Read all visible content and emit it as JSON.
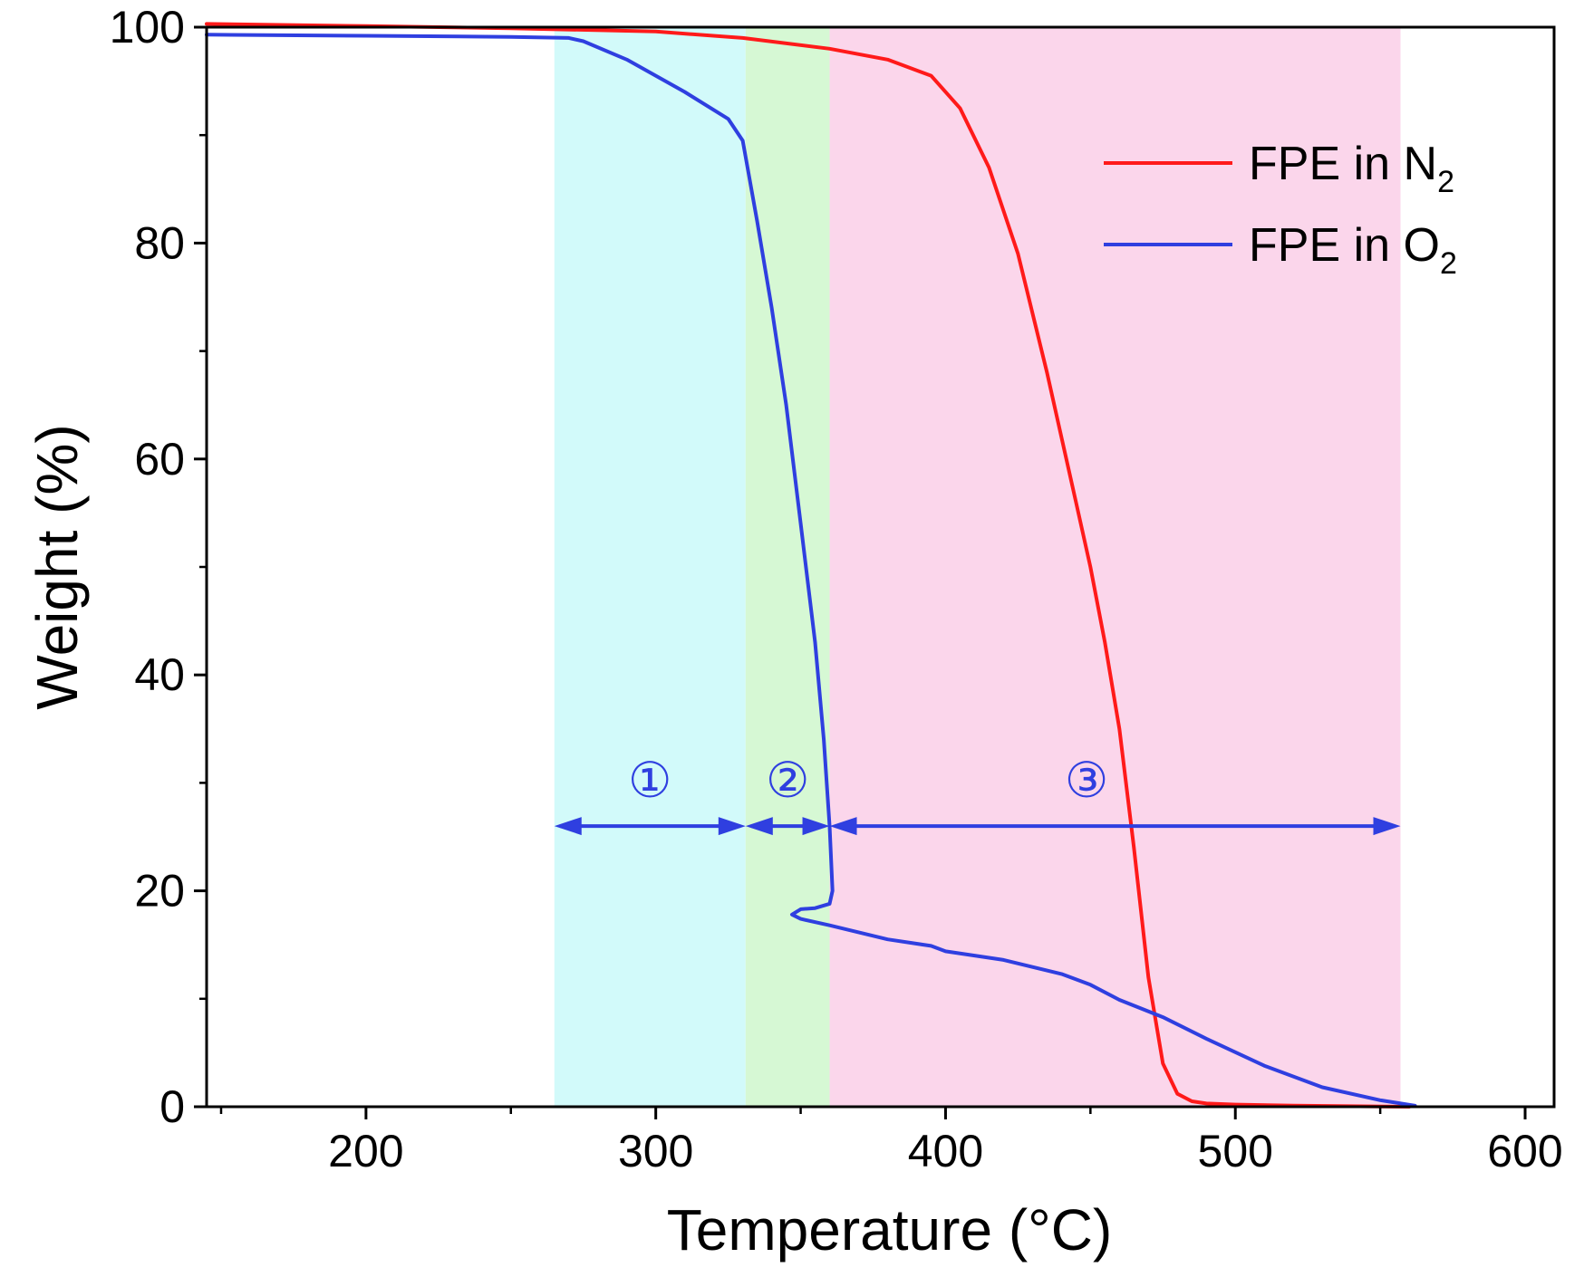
{
  "chart_data": {
    "type": "line",
    "title": "",
    "xlabel": "Temperature (°C)",
    "ylabel": "Weight (%)",
    "xlim": [
      145,
      610
    ],
    "ylim": [
      0,
      100
    ],
    "x_ticks": [
      200,
      300,
      400,
      500,
      600
    ],
    "x_tick_labels": [
      "200",
      "300",
      "400",
      "500",
      "600"
    ],
    "y_ticks": [
      0,
      20,
      40,
      60,
      80,
      100
    ],
    "y_tick_labels": [
      "0",
      "20",
      "40",
      "60",
      "80",
      "100"
    ],
    "grid": false,
    "legend_position": "top-right",
    "series": [
      {
        "name": "FPE in N2",
        "legend_main": "FPE in N",
        "legend_sub": "2",
        "color": "#ff1a1a",
        "x": [
          145,
          200,
          250,
          300,
          330,
          360,
          380,
          395,
          405,
          415,
          425,
          435,
          440,
          445,
          450,
          455,
          460,
          465,
          470,
          475,
          480,
          485,
          490,
          500,
          520,
          560
        ],
        "y": [
          100.3,
          100.1,
          99.9,
          99.6,
          99.0,
          98.0,
          97.0,
          95.5,
          92.5,
          87,
          79,
          68,
          62,
          56,
          50,
          43,
          35,
          24,
          12,
          4,
          1.2,
          0.5,
          0.3,
          0.2,
          0.1,
          0.0
        ]
      },
      {
        "name": "FPE in O2",
        "legend_main": "FPE in O",
        "legend_sub": "2",
        "color": "#2f3fe0",
        "x": [
          145,
          200,
          250,
          270,
          275,
          290,
          310,
          325,
          330,
          335,
          340,
          345,
          350,
          355,
          358,
          360,
          361,
          360,
          355,
          350,
          347,
          350,
          360,
          380,
          395,
          400,
          420,
          440,
          450,
          460,
          475,
          490,
          510,
          530,
          550,
          562
        ],
        "y": [
          99.3,
          99.2,
          99.1,
          99.0,
          98.7,
          97.0,
          94.0,
          91.5,
          89.5,
          82,
          74,
          65,
          54,
          43,
          34,
          26,
          20,
          18.8,
          18.4,
          18.3,
          17.8,
          17.4,
          16.8,
          15.5,
          14.9,
          14.4,
          13.6,
          12.3,
          11.3,
          9.9,
          8.3,
          6.3,
          3.8,
          1.8,
          0.6,
          0.1
        ]
      }
    ],
    "regions": [
      {
        "stage": "1",
        "label": "①",
        "x_start": 265,
        "x_end": 331,
        "color": "#d2fafa"
      },
      {
        "stage": "2",
        "label": "②",
        "x_start": 331,
        "x_end": 360,
        "color": "#d6f8d4"
      },
      {
        "stage": "3",
        "label": "③",
        "x_start": 360,
        "x_end": 557,
        "color": "#fbd6eb"
      }
    ],
    "stage_arrows": {
      "y": 26,
      "color": "#2f3fe0"
    }
  }
}
